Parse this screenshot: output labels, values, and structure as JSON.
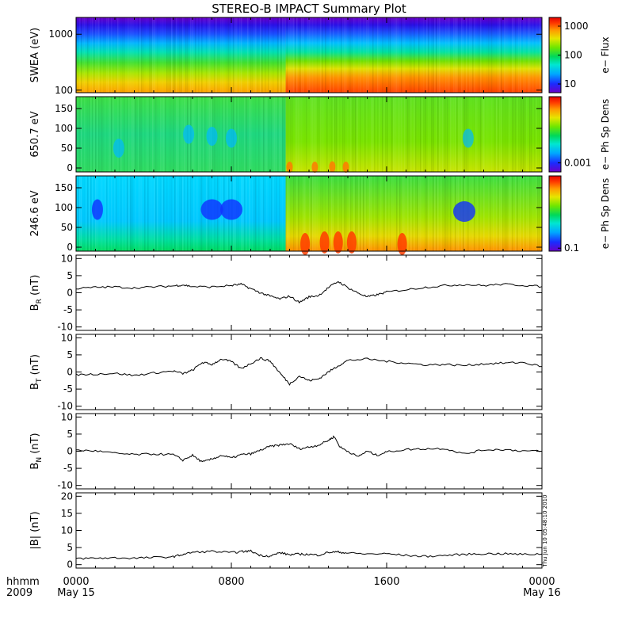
{
  "title": "STEREO-B IMPACT Summary Plot",
  "x_axis": {
    "row1_label": "hhmm",
    "row2_label": "2009",
    "ticks": [
      {
        "hour": 0,
        "top": "0000",
        "bottom": "May 15"
      },
      {
        "hour": 8,
        "top": "0800",
        "bottom": ""
      },
      {
        "hour": 16,
        "top": "1600",
        "bottom": ""
      },
      {
        "hour": 24,
        "top": "0000",
        "bottom": "May 16"
      }
    ],
    "minor_step_hours": 1
  },
  "timestamp": "Thu Jun 10 05:48:10 2010",
  "colors": {
    "colorbar": [
      "#6a00c8",
      "#1a2cff",
      "#00a8ff",
      "#00e6d2",
      "#00d85a",
      "#6ee600",
      "#e6e600",
      "#ff9a00",
      "#ff3c00",
      "#e60000"
    ],
    "line": "#000000"
  },
  "chart_data": [
    {
      "type": "heatmap",
      "name": "swea-spectrogram",
      "ylabel": "SWEA (eV)",
      "yscale": "log",
      "ylim": [
        90,
        2000
      ],
      "yticks": [
        {
          "value": 100,
          "label": "100"
        },
        {
          "value": 1000,
          "label": "1000"
        }
      ],
      "colorbar": {
        "label": "e− Flux",
        "scale": "log",
        "range": [
          5,
          2000
        ],
        "ticks": [
          {
            "value": 10,
            "label": "10"
          },
          {
            "value": 100,
            "label": "100"
          },
          {
            "value": 1000,
            "label": "1000"
          }
        ]
      },
      "change_hour": 10.8
    },
    {
      "type": "heatmap",
      "name": "pad-650-spectrogram",
      "ylabel": "650.7 eV",
      "ylim": [
        -10,
        180
      ],
      "yticks": [
        {
          "value": 0,
          "label": "0"
        },
        {
          "value": 50,
          "label": "50"
        },
        {
          "value": 100,
          "label": "100"
        },
        {
          "value": 150,
          "label": "150"
        }
      ],
      "colorbar": {
        "label": "e− Ph Sp Dens",
        "ticks": [
          {
            "frac": 0.12,
            "label": "0.001"
          }
        ]
      },
      "change_hour": 10.8
    },
    {
      "type": "heatmap",
      "name": "pad-246-spectrogram",
      "ylabel": "246.6 eV",
      "ylim": [
        -10,
        180
      ],
      "yticks": [
        {
          "value": 0,
          "label": "0"
        },
        {
          "value": 50,
          "label": "50"
        },
        {
          "value": 100,
          "label": "100"
        },
        {
          "value": 150,
          "label": "150"
        }
      ],
      "colorbar": {
        "label": "e− Ph Sp Dens",
        "ticks": [
          {
            "frac": 0.04,
            "label": "0.1"
          }
        ]
      },
      "change_hour": 10.8
    },
    {
      "type": "line",
      "name": "br-panel",
      "ylabel": "B",
      "ylabel_sub": "R",
      "ylabel_unit": "(nT)",
      "ylim": [
        -11,
        11
      ],
      "yticks": [
        {
          "value": -10,
          "label": "-10"
        },
        {
          "value": -5,
          "label": "-5"
        },
        {
          "value": 0,
          "label": "0"
        },
        {
          "value": 5,
          "label": "5"
        },
        {
          "value": 10,
          "label": "10"
        }
      ],
      "x": [
        0,
        1,
        2,
        3,
        4,
        5,
        5.5,
        6,
        7,
        8,
        8.5,
        9,
        9.5,
        10,
        10.5,
        11,
        11.5,
        12,
        12.5,
        13,
        13.5,
        14,
        14.5,
        15,
        15.5,
        16,
        17,
        18,
        19,
        20,
        21,
        22,
        23,
        24
      ],
      "y": [
        1.2,
        1.6,
        1.7,
        1.4,
        1.7,
        2,
        2.3,
        1.8,
        1.7,
        2.1,
        2.5,
        1.2,
        0,
        -1,
        -1.8,
        -1,
        -2.8,
        -1.2,
        -0.8,
        1.5,
        3.3,
        1.5,
        0,
        -1.2,
        -0.6,
        0.2,
        0.9,
        1.6,
        2.1,
        2.4,
        2.1,
        2.5,
        2.2,
        1.8
      ]
    },
    {
      "type": "line",
      "name": "bt-panel",
      "ylabel": "B",
      "ylabel_sub": "T",
      "ylabel_unit": "(nT)",
      "ylim": [
        -11,
        11
      ],
      "yticks": [
        {
          "value": -10,
          "label": "-10"
        },
        {
          "value": -5,
          "label": "-5"
        },
        {
          "value": 0,
          "label": "0"
        },
        {
          "value": 5,
          "label": "5"
        },
        {
          "value": 10,
          "label": "10"
        }
      ],
      "x": [
        0,
        1,
        2,
        3,
        4,
        5,
        5.5,
        6,
        6.5,
        7,
        7.5,
        8,
        8.5,
        9,
        9.5,
        10,
        10.5,
        11,
        11.5,
        12,
        12.5,
        13,
        13.5,
        14,
        15,
        16,
        17,
        18,
        19,
        20,
        21,
        22,
        23,
        24
      ],
      "y": [
        -0.8,
        -0.6,
        -0.4,
        -1,
        -0.3,
        0.3,
        -0.5,
        0.5,
        2.8,
        2.2,
        3.8,
        3,
        1,
        2.5,
        4,
        3.2,
        -0.3,
        -3.5,
        -1.2,
        -2.5,
        -2,
        0,
        1.8,
        3.4,
        3.8,
        3.1,
        2.6,
        2.1,
        2.2,
        1.9,
        2.4,
        2.6,
        2.8,
        1.6
      ]
    },
    {
      "type": "line",
      "name": "bn-panel",
      "ylabel": "B",
      "ylabel_sub": "N",
      "ylabel_unit": "(nT)",
      "ylim": [
        -11,
        11
      ],
      "yticks": [
        {
          "value": -10,
          "label": "-10"
        },
        {
          "value": -5,
          "label": "-5"
        },
        {
          "value": 0,
          "label": "0"
        },
        {
          "value": 5,
          "label": "5"
        },
        {
          "value": 10,
          "label": "10"
        }
      ],
      "x": [
        0,
        1,
        2,
        3,
        4,
        5,
        5.5,
        6,
        6.5,
        7,
        7.5,
        8,
        8.5,
        9,
        9.5,
        10,
        10.5,
        11,
        11.5,
        12,
        12.5,
        13,
        13.3,
        13.6,
        14,
        14.5,
        15,
        15.5,
        16,
        17,
        18,
        19,
        20,
        21,
        22,
        23,
        24
      ],
      "y": [
        0.3,
        0.1,
        -0.6,
        -1,
        -0.8,
        -1,
        -2.6,
        -1.2,
        -3.2,
        -2.3,
        -1.2,
        -2,
        -1,
        -0.8,
        0.3,
        1.4,
        1.8,
        2.2,
        0.7,
        1.2,
        1.8,
        3.2,
        4.3,
        1.2,
        0,
        -1.6,
        0,
        -1.2,
        -0.2,
        0.5,
        0.7,
        0.8,
        -0.8,
        0.4,
        0.5,
        0.1,
        0
      ]
    },
    {
      "type": "line",
      "name": "bmag-panel",
      "ylabel": "|B|",
      "ylabel_unit": "(nT)",
      "ylim": [
        -1,
        21
      ],
      "yticks": [
        {
          "value": 0,
          "label": "0"
        },
        {
          "value": 5,
          "label": "5"
        },
        {
          "value": 10,
          "label": "10"
        },
        {
          "value": 15,
          "label": "15"
        },
        {
          "value": 20,
          "label": "20"
        }
      ],
      "x": [
        0,
        1,
        2,
        3,
        4,
        5,
        5.5,
        6,
        7,
        8,
        8.5,
        9,
        9.5,
        10,
        10.5,
        11,
        11.5,
        12,
        12.5,
        13,
        13.5,
        14,
        15,
        16,
        17,
        18,
        19,
        20,
        21,
        22,
        23,
        24
      ],
      "y": [
        1.8,
        1.9,
        2,
        1.9,
        2.1,
        2.3,
        3,
        3.6,
        3.9,
        3.5,
        3.8,
        4,
        2.7,
        2.5,
        3.5,
        2.9,
        3.1,
        3,
        2.8,
        3.6,
        3.7,
        3.4,
        3.1,
        3.2,
        2.7,
        2.4,
        2.7,
        3,
        3.2,
        3.2,
        3,
        3.1
      ]
    }
  ]
}
